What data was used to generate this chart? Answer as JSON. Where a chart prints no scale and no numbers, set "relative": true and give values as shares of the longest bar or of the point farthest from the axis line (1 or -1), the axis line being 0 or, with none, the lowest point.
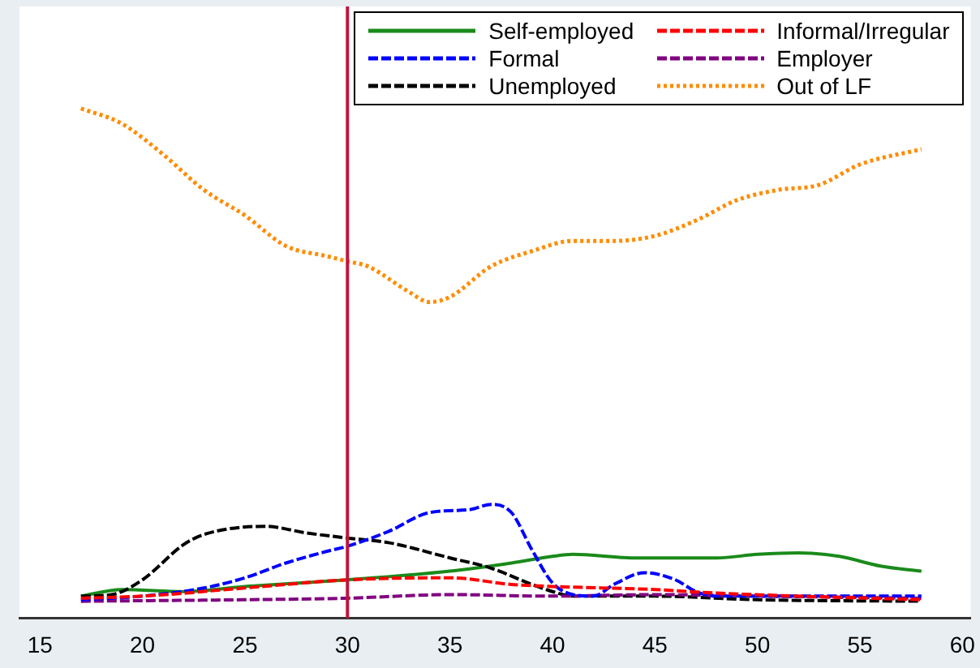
{
  "chart_data": {
    "type": "line",
    "relative": true,
    "xlim": [
      14,
      60.4
    ],
    "xticks": [
      15,
      20,
      25,
      30,
      35,
      40,
      45,
      50,
      55,
      60
    ],
    "legend": "top right",
    "grid": false,
    "marker": "none",
    "ref_lines": [
      {
        "axis": "x",
        "value": 30,
        "color": "#c0143c"
      }
    ],
    "series": [
      {
        "name": "Self-employed",
        "color": "#1a8a1a",
        "line_style": "solid",
        "x": [
          17,
          19,
          22,
          25,
          30,
          35,
          38,
          40,
          41,
          44,
          48,
          50,
          52,
          54,
          56,
          58
        ],
        "values": [
          0.043,
          0.056,
          0.052,
          0.062,
          0.075,
          0.092,
          0.108,
          0.121,
          0.125,
          0.118,
          0.118,
          0.125,
          0.128,
          0.121,
          0.102,
          0.092
        ]
      },
      {
        "name": "Informal/Irregular",
        "color": "#ff0000",
        "line_style": "dashed",
        "x": [
          17,
          20,
          25,
          30,
          35,
          38,
          40,
          45,
          48,
          58
        ],
        "values": [
          0.039,
          0.043,
          0.059,
          0.075,
          0.079,
          0.066,
          0.062,
          0.056,
          0.049,
          0.036
        ]
      },
      {
        "name": "Formal",
        "color": "#0000ff",
        "line_style": "dashed",
        "x": [
          17,
          20,
          23,
          25,
          27,
          29,
          30,
          32,
          34,
          36,
          37,
          38,
          39,
          40,
          41,
          42,
          43,
          44.5,
          46,
          47,
          48,
          58
        ],
        "values": [
          0.036,
          0.043,
          0.059,
          0.079,
          0.108,
          0.131,
          0.141,
          0.17,
          0.207,
          0.213,
          0.223,
          0.207,
          0.134,
          0.069,
          0.046,
          0.043,
          0.066,
          0.089,
          0.075,
          0.052,
          0.043,
          0.043
        ]
      },
      {
        "name": "Employer",
        "color": "#800080",
        "line_style": "dashed",
        "x": [
          17,
          25,
          30,
          35,
          40,
          45,
          50,
          58
        ],
        "values": [
          0.033,
          0.036,
          0.039,
          0.046,
          0.043,
          0.046,
          0.043,
          0.039
        ]
      },
      {
        "name": "Unemployed",
        "color": "#000000",
        "line_style": "dashed",
        "x": [
          17,
          18.5,
          20,
          22,
          23,
          26,
          28,
          30,
          32,
          35,
          37,
          39,
          40,
          41,
          45,
          50,
          58
        ],
        "values": [
          0.043,
          0.046,
          0.075,
          0.144,
          0.164,
          0.18,
          0.167,
          0.157,
          0.148,
          0.118,
          0.098,
          0.066,
          0.052,
          0.043,
          0.043,
          0.036,
          0.033
        ]
      },
      {
        "name": "Out of LF",
        "color": "#ff8c00",
        "line_style": "dotted",
        "x": [
          17,
          19,
          21,
          23,
          25,
          27,
          29,
          30,
          31,
          33,
          34,
          35,
          37,
          39,
          41,
          43,
          45,
          47,
          49,
          51,
          53,
          55,
          58
        ],
        "values": [
          1,
          0.97,
          0.91,
          0.84,
          0.79,
          0.73,
          0.71,
          0.7,
          0.69,
          0.64,
          0.62,
          0.63,
          0.69,
          0.72,
          0.74,
          0.74,
          0.75,
          0.78,
          0.82,
          0.84,
          0.85,
          0.89,
          0.92
        ]
      }
    ]
  }
}
